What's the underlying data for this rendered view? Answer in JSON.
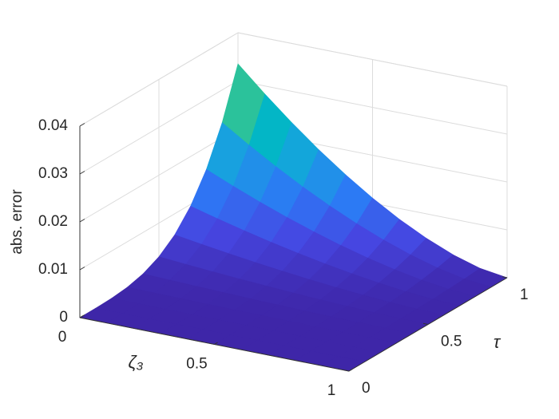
{
  "chart_data": {
    "type": "surface",
    "xlabel": "ζ₃",
    "ylabel": "τ",
    "zlabel": "abs. error",
    "x": [
      0,
      0.1,
      0.2,
      0.3,
      0.4,
      0.5,
      0.6,
      0.7,
      0.8,
      0.9,
      1
    ],
    "y": [
      0,
      0.1,
      0.2,
      0.3,
      0.4,
      0.5,
      0.6,
      0.7,
      0.8,
      0.9,
      1
    ],
    "z": [
      [
        0,
        1e-05,
        0.00012,
        0.0005,
        0.00136,
        0.00296,
        0.0056,
        0.00962,
        0.01534,
        0.02317,
        0.0335
      ],
      [
        0,
        1e-05,
        0.0001,
        0.00042,
        0.00115,
        0.0025,
        0.00473,
        0.00813,
        0.01296,
        0.01958,
        0.02831
      ],
      [
        0,
        1e-05,
        8e-05,
        0.00035,
        0.00095,
        0.00207,
        0.00392,
        0.00673,
        0.01074,
        0.01622,
        0.02345
      ],
      [
        0,
        1e-05,
        7e-05,
        0.00028,
        0.00077,
        0.00167,
        0.00316,
        0.00544,
        0.00867,
        0.01309,
        0.01893
      ],
      [
        0,
        0,
        5e-05,
        0.00022,
        0.0006,
        0.00131,
        0.00248,
        0.00425,
        0.00678,
        0.01024,
        0.01481
      ],
      [
        0,
        0,
        4e-05,
        0.00017,
        0.00045,
        0.00098,
        0.00185,
        0.00317,
        0.00506,
        0.00765,
        0.01106
      ],
      [
        0,
        0,
        3e-05,
        0.00012,
        0.00031,
        0.00068,
        0.00129,
        0.00222,
        0.00354,
        0.00535,
        0.00774
      ],
      [
        0,
        0,
        2e-05,
        7e-05,
        0.0002,
        0.00043,
        0.00082,
        0.0014,
        0.00224,
        0.00338,
        0.00489
      ],
      [
        0,
        0,
        1e-05,
        4e-05,
        0.0001,
        0.00022,
        0.00043,
        0.00073,
        0.00117,
        0.00176,
        0.00255
      ],
      [
        0,
        0,
        0,
        1e-05,
        3e-05,
        7e-05,
        0.00014,
        0.00024,
        0.00039,
        0.00058,
        0.00084
      ],
      [
        0,
        0,
        0,
        0,
        0,
        0,
        0,
        0,
        0,
        0,
        0
      ]
    ],
    "xlim": [
      0,
      1
    ],
    "ylim": [
      0,
      1
    ],
    "zlim": [
      0,
      0.04
    ],
    "xticks": [
      0,
      0.5,
      1
    ],
    "yticks": [
      0,
      0.5,
      1
    ],
    "zticks": [
      0,
      0.01,
      0.02,
      0.03,
      0.04
    ],
    "grid": true,
    "colormap": "parula"
  }
}
